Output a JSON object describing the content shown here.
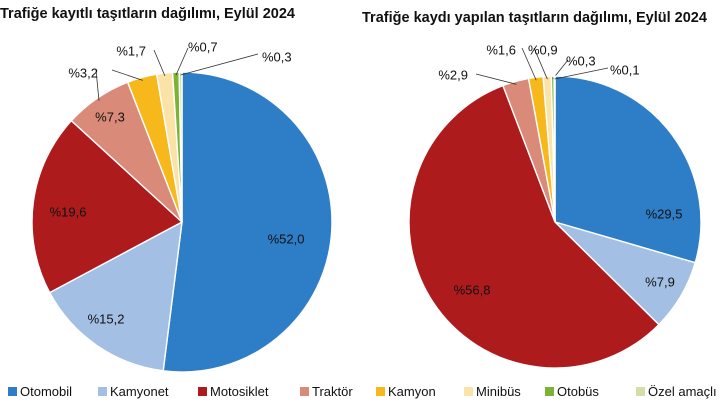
{
  "legend": {
    "items": [
      {
        "label": "Otomobil",
        "color": "#2e7dc7"
      },
      {
        "label": "Kamyonet",
        "color": "#a3bfe3"
      },
      {
        "label": "Motosiklet",
        "color": "#ad1b1d"
      },
      {
        "label": "Traktör",
        "color": "#d98a78"
      },
      {
        "label": "Kamyon",
        "color": "#f7b81c"
      },
      {
        "label": "Minibüs",
        "color": "#fbe3a8"
      },
      {
        "label": "Otobüs",
        "color": "#7bb434"
      },
      {
        "label": "Özel amaçlı",
        "color": "#d3dea8"
      }
    ]
  },
  "chart_data": [
    {
      "type": "pie",
      "title": "Trafiğe kayıtlı taşıtların dağılımı, Eylül 2024",
      "categories": [
        "Otomobil",
        "Kamyonet",
        "Motosiklet",
        "Traktör",
        "Kamyon",
        "Minibüs",
        "Otobüs",
        "Özel amaçlı"
      ],
      "values": [
        52.0,
        15.2,
        19.6,
        7.3,
        3.2,
        1.7,
        0.7,
        0.3
      ],
      "labels": [
        "%52,0",
        "%15,2",
        "%19,6",
        "%7,3",
        "%3,2",
        "%1,7",
        "%0,7",
        "%0,3"
      ]
    },
    {
      "type": "pie",
      "title": "Trafiğe kaydı yapılan taşıtların dağılımı, Eylül 2024",
      "categories": [
        "Otomobil",
        "Kamyonet",
        "Motosiklet",
        "Traktör",
        "Kamyon",
        "Minibüs",
        "Otobüs",
        "Özel amaçlı"
      ],
      "values": [
        29.5,
        7.9,
        56.8,
        2.9,
        1.6,
        0.9,
        0.3,
        0.1
      ],
      "labels": [
        "%29,5",
        "%7,9",
        "%56,8",
        "%2,9",
        "%1,6",
        "%0,9",
        "%0,3",
        "%0,1"
      ]
    }
  ]
}
